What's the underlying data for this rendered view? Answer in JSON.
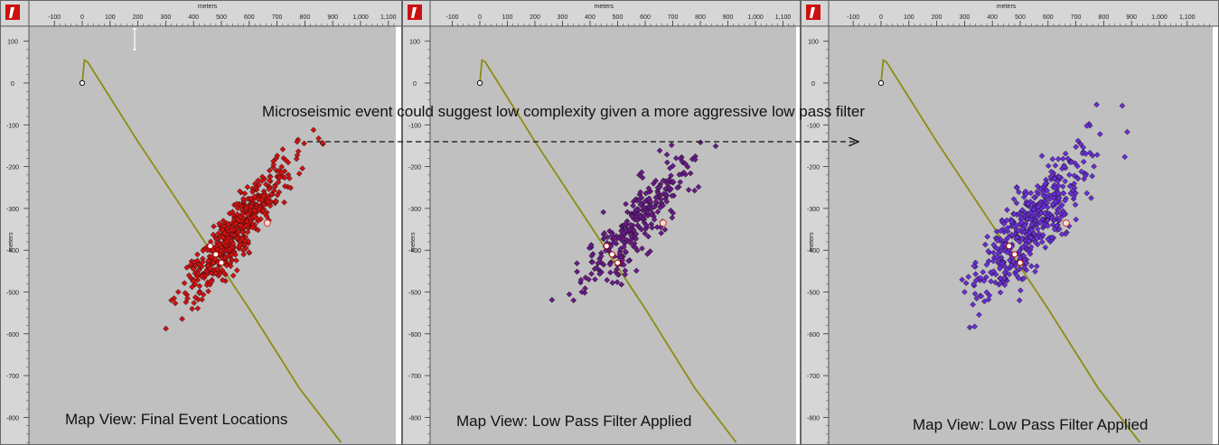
{
  "annotation": {
    "text": "Microseismic event could suggest low complexity given a more aggressive low pass filter"
  },
  "colors": {
    "panel_bg": "#c0c0c0",
    "ruler_bg": "#d6d6d6",
    "well_trace": "#8c8c14",
    "logo": "#cc1111"
  },
  "chart_data": [
    {
      "type": "scatter",
      "title": "Map View: Final Event Locations",
      "xlabel": "meters",
      "ylabel": "meters",
      "xlim": [
        -180,
        1150
      ],
      "ylim": [
        -840,
        120
      ],
      "x_ticks": [
        "-100",
        "0",
        "100",
        "200",
        "300",
        "400",
        "500",
        "600",
        "700",
        "800",
        "900",
        "1,000",
        "1,100"
      ],
      "y_ticks": [
        "100",
        "0",
        "-100",
        "-200",
        "-300",
        "-400",
        "-500",
        "-600",
        "-700",
        "-800"
      ],
      "event_color": "#d41010",
      "well_path": [
        [
          0,
          0
        ],
        [
          8,
          55
        ],
        [
          20,
          50
        ],
        [
          200,
          -140
        ],
        [
          400,
          -340
        ],
        [
          470,
          -410
        ],
        [
          600,
          -540
        ],
        [
          780,
          -730
        ],
        [
          930,
          -860
        ]
      ],
      "perforations": [
        [
          460,
          -390
        ],
        [
          480,
          -410
        ],
        [
          500,
          -430
        ]
      ],
      "wellhead": [
        0,
        0
      ],
      "monitor_point": [
        665,
        -335
      ],
      "event_cloud": {
        "count": 520,
        "center": [
          560,
          -350
        ],
        "spread_major": 260,
        "spread_minor": 26,
        "angle_deg": 40,
        "tail": [
          [
            320,
            -520
          ],
          [
            330,
            -515
          ],
          [
            345,
            -500
          ]
        ]
      }
    },
    {
      "type": "scatter",
      "title": "Map View: Low Pass Filter Applied",
      "xlabel": "meters",
      "ylabel": "meters",
      "xlim": [
        -180,
        1150
      ],
      "ylim": [
        -840,
        120
      ],
      "x_ticks": [
        "-100",
        "0",
        "100",
        "200",
        "300",
        "400",
        "500",
        "600",
        "700",
        "800",
        "900",
        "1,000",
        "1,100"
      ],
      "y_ticks": [
        "100",
        "0",
        "-100",
        "-200",
        "-300",
        "-400",
        "-500",
        "-600",
        "-700",
        "-800"
      ],
      "event_color": "#6a1a8a",
      "well_path": [
        [
          0,
          0
        ],
        [
          8,
          55
        ],
        [
          20,
          50
        ],
        [
          200,
          -140
        ],
        [
          400,
          -340
        ],
        [
          470,
          -410
        ],
        [
          600,
          -540
        ],
        [
          780,
          -730
        ],
        [
          930,
          -860
        ]
      ],
      "perforations": [
        [
          460,
          -390
        ],
        [
          480,
          -410
        ],
        [
          500,
          -430
        ]
      ],
      "wellhead": [
        0,
        0
      ],
      "monitor_point": [
        665,
        -335
      ],
      "event_cloud": {
        "count": 300,
        "center": [
          560,
          -340
        ],
        "spread_major": 270,
        "spread_minor": 34,
        "angle_deg": 40,
        "tail": [
          [
            340,
            -520
          ],
          [
            370,
            -500
          ],
          [
            395,
            -470
          ]
        ]
      }
    },
    {
      "type": "scatter",
      "title": "Map View: Low Pass Filter Applied",
      "xlabel": "meters",
      "ylabel": "meters",
      "xlim": [
        -180,
        1150
      ],
      "ylim": [
        -840,
        120
      ],
      "x_ticks": [
        "-100",
        "0",
        "100",
        "200",
        "300",
        "400",
        "500",
        "600",
        "700",
        "800",
        "900",
        "1,000",
        "1,100"
      ],
      "y_ticks": [
        "100",
        "0",
        "-100",
        "-200",
        "-300",
        "-400",
        "-500",
        "-600",
        "-700",
        "-800"
      ],
      "event_color": "#6a2ed8",
      "well_path": [
        [
          0,
          0
        ],
        [
          8,
          55
        ],
        [
          20,
          50
        ],
        [
          200,
          -140
        ],
        [
          400,
          -340
        ],
        [
          470,
          -410
        ],
        [
          600,
          -540
        ],
        [
          780,
          -730
        ],
        [
          930,
          -860
        ]
      ],
      "perforations": [
        [
          460,
          -390
        ],
        [
          480,
          -410
        ],
        [
          500,
          -430
        ]
      ],
      "wellhead": [
        0,
        0
      ],
      "monitor_point": [
        665,
        -335
      ],
      "event_cloud": {
        "count": 480,
        "center": [
          540,
          -340
        ],
        "spread_major": 300,
        "spread_minor": 38,
        "angle_deg": 40,
        "tail": [
          [
            300,
            -500
          ],
          [
            330,
            -530
          ],
          [
            360,
            -510
          ]
        ]
      }
    }
  ]
}
